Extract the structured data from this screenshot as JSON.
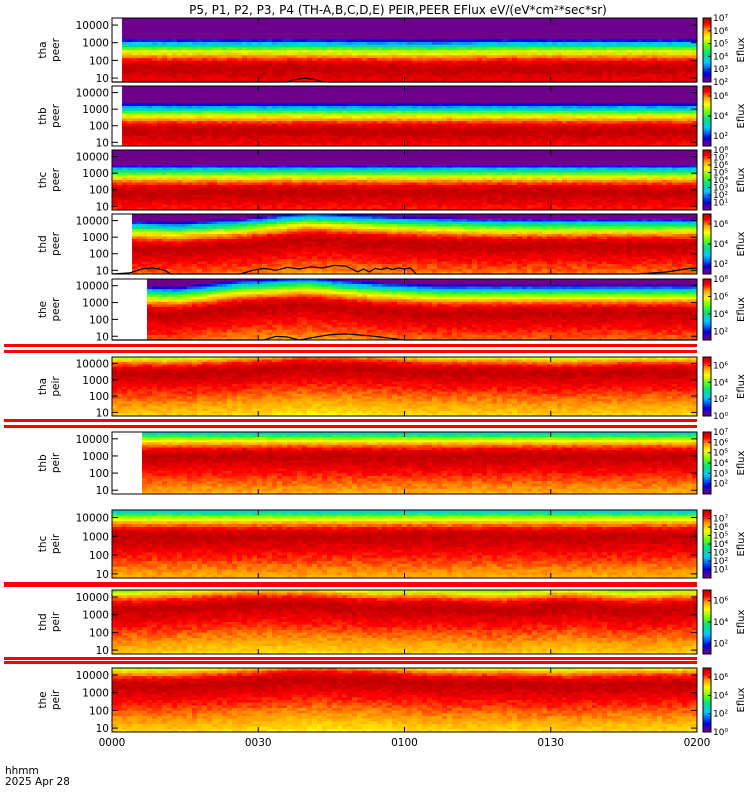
{
  "chart_data": {
    "type": "heatmap",
    "title": "P5, P1, P2, P3, P4 (TH-A,B,C,D,E) PEIR,PEER EFlux eV/(eV*cm²*sec*sr)",
    "colorbar_label": "Eflux",
    "xaxis": {
      "label": "hhmm",
      "date": "2025 Apr 28",
      "ticks": [
        "0000",
        "0030",
        "0100",
        "0130",
        "0200"
      ],
      "range": [
        "00:00",
        "02:00"
      ]
    },
    "yaxis": {
      "scale": "log",
      "ticks": [
        "10",
        "100",
        "1000",
        "10000"
      ],
      "range": [
        6,
        25000
      ]
    },
    "panels": [
      {
        "probe": "tha",
        "species": "peer",
        "row1": "tha",
        "row2": "peer",
        "colorbar_ticks": [
          "10²",
          "10³",
          "10⁴",
          "10⁵",
          "10⁶",
          "10⁷"
        ],
        "cb_exp": [
          2,
          7
        ],
        "flux_max_energy": [
          30,
          30,
          30,
          30,
          28,
          26,
          30,
          30,
          30,
          30
        ],
        "data_start": 0.02,
        "has_curve": true,
        "curve": [
          [
            0.0,
            6
          ],
          [
            0.3,
            6
          ],
          [
            0.31,
            8
          ],
          [
            0.33,
            10
          ],
          [
            0.35,
            8
          ],
          [
            0.36,
            6
          ],
          [
            1.0,
            6
          ]
        ]
      },
      {
        "probe": "thb",
        "species": "peer",
        "row1": "thb",
        "row2": "peer",
        "colorbar_ticks": [
          "10²",
          "10⁴",
          "10⁶"
        ],
        "cb_exp": [
          1,
          7
        ],
        "flux_max_energy": [
          40,
          40,
          40,
          40,
          40,
          40,
          40,
          40,
          40,
          40
        ],
        "data_start": 0.02,
        "has_curve": false,
        "curve": []
      },
      {
        "probe": "thc",
        "species": "peer",
        "row1": "thc",
        "row2": "peer",
        "colorbar_ticks": [
          "10¹",
          "10²",
          "10³",
          "10⁴",
          "10⁵",
          "10⁶",
          "10⁷",
          "10⁸"
        ],
        "cb_exp": [
          0,
          8
        ],
        "flux_max_energy": [
          60,
          60,
          60,
          60,
          60,
          60,
          60,
          60,
          60,
          60
        ],
        "data_start": 0.0,
        "has_curve": false,
        "curve": []
      },
      {
        "probe": "thd",
        "species": "peer",
        "row1": "thd",
        "row2": "peer",
        "colorbar_ticks": [
          "10²",
          "10⁴",
          "10⁶"
        ],
        "cb_exp": [
          1,
          7
        ],
        "flux_max_energy": [
          200,
          150,
          250,
          600,
          400,
          300,
          250,
          250,
          250,
          250
        ],
        "data_start": 0.03,
        "has_curve": true,
        "curve": [
          [
            0.0,
            6
          ],
          [
            0.03,
            7
          ],
          [
            0.05,
            12
          ],
          [
            0.07,
            14
          ],
          [
            0.09,
            10
          ],
          [
            0.1,
            6
          ],
          [
            0.22,
            6
          ],
          [
            0.24,
            10
          ],
          [
            0.26,
            13
          ],
          [
            0.28,
            10
          ],
          [
            0.3,
            15
          ],
          [
            0.32,
            12
          ],
          [
            0.34,
            16
          ],
          [
            0.36,
            14
          ],
          [
            0.38,
            20
          ],
          [
            0.4,
            18
          ],
          [
            0.42,
            8
          ],
          [
            0.43,
            12
          ],
          [
            0.44,
            8
          ],
          [
            0.45,
            13
          ],
          [
            0.46,
            11
          ],
          [
            0.47,
            14
          ],
          [
            0.48,
            11
          ],
          [
            0.49,
            14
          ],
          [
            0.5,
            12
          ],
          [
            0.51,
            14
          ],
          [
            0.52,
            6
          ],
          [
            0.9,
            6
          ],
          [
            0.95,
            8
          ],
          [
            0.98,
            12
          ],
          [
            1.0,
            14
          ]
        ]
      },
      {
        "probe": "the",
        "species": "peer",
        "row1": "the",
        "row2": "peer",
        "colorbar_ticks": [
          "10²",
          "10⁴",
          "10⁶",
          "10⁸"
        ],
        "cb_exp": [
          1,
          8
        ],
        "flux_max_energy": [
          200,
          150,
          400,
          600,
          300,
          200,
          200,
          200,
          200,
          200
        ],
        "data_start": 0.06,
        "has_curve": true,
        "curve": [
          [
            0.0,
            6
          ],
          [
            0.26,
            6
          ],
          [
            0.28,
            10
          ],
          [
            0.3,
            9
          ],
          [
            0.32,
            6
          ],
          [
            0.34,
            8
          ],
          [
            0.37,
            12
          ],
          [
            0.4,
            14
          ],
          [
            0.42,
            12
          ],
          [
            0.45,
            10
          ],
          [
            0.47,
            8
          ],
          [
            0.5,
            6
          ],
          [
            1.0,
            6
          ]
        ]
      },
      {
        "probe": "tha",
        "species": "peir",
        "row1": "tha",
        "row2": "peir",
        "colorbar_ticks": [
          "10⁰",
          "10²",
          "10⁴",
          "10⁶"
        ],
        "cb_exp": [
          0,
          7
        ],
        "flux_max_energy": [
          2000,
          2000,
          3000,
          5000,
          4000,
          2500,
          2500,
          2000,
          2500,
          2500
        ],
        "data_start": 0.0,
        "has_curve": false,
        "curve": []
      },
      {
        "probe": "thb",
        "species": "peir",
        "row1": "thb",
        "row2": "peir",
        "colorbar_ticks": [
          "10²",
          "10³",
          "10⁴",
          "10⁵",
          "10⁶",
          "10⁷"
        ],
        "cb_exp": [
          1,
          7
        ],
        "flux_max_energy": [
          800,
          800,
          800,
          800,
          800,
          800,
          800,
          800,
          800,
          800
        ],
        "data_start": 0.055,
        "has_curve": false,
        "curve": []
      },
      {
        "probe": "thc",
        "species": "peir",
        "row1": "thc",
        "row2": "peir",
        "colorbar_ticks": [
          "10¹",
          "10²",
          "10³",
          "10⁴",
          "10⁵",
          "10⁶",
          "10⁷"
        ],
        "cb_exp": [
          0,
          8
        ],
        "flux_max_energy": [
          800,
          800,
          800,
          800,
          800,
          800,
          800,
          800,
          800,
          800
        ],
        "data_start": 0.0,
        "has_curve": false,
        "curve": []
      },
      {
        "probe": "thd",
        "species": "peir",
        "row1": "thd",
        "row2": "peir",
        "colorbar_ticks": [
          "10²",
          "10⁴",
          "10⁶"
        ],
        "cb_exp": [
          1,
          7
        ],
        "flux_max_energy": [
          1500,
          2000,
          3000,
          3000,
          2000,
          2000,
          1500,
          2500,
          1500,
          2000
        ],
        "data_start": 0.0,
        "has_curve": false,
        "curve": []
      },
      {
        "probe": "the",
        "species": "peir",
        "row1": "the",
        "row2": "peir",
        "colorbar_ticks": [
          "10⁰",
          "10²",
          "10⁴",
          "10⁶"
        ],
        "cb_exp": [
          0,
          7
        ],
        "flux_max_energy": [
          2000,
          2000,
          3000,
          5000,
          4000,
          2500,
          2500,
          2000,
          2500,
          2500
        ],
        "data_start": 0.0,
        "has_curve": false,
        "curve": []
      }
    ]
  }
}
